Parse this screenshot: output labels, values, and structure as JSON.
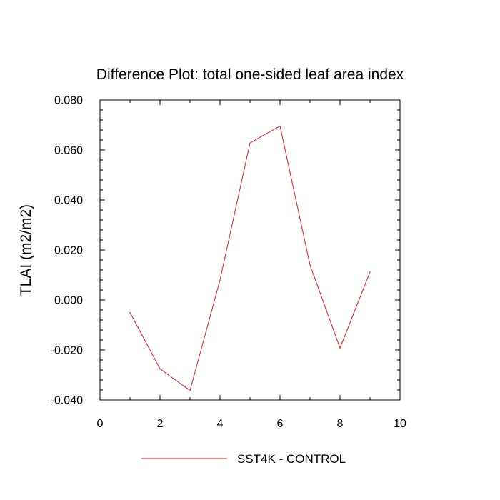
{
  "chart_data": {
    "type": "line",
    "title": "Difference Plot: total one-sided leaf area index",
    "xlabel": "",
    "ylabel": "TLAI  (m2/m2)",
    "xlim": [
      0,
      10
    ],
    "ylim": [
      -0.04,
      0.08
    ],
    "x_ticks": [
      "0",
      "2",
      "4",
      "6",
      "8",
      "10"
    ],
    "x_tick_values": [
      0,
      2,
      4,
      6,
      8,
      10
    ],
    "y_ticks": [
      "-0.040",
      "-0.020",
      "0.000",
      "0.020",
      "0.040",
      "0.060",
      "0.080"
    ],
    "y_tick_values": [
      -0.04,
      -0.02,
      0.0,
      0.02,
      0.04,
      0.06,
      0.08
    ],
    "grid": false,
    "legend_position": "bottom-center",
    "series": [
      {
        "name": "SST4K - CONTROL",
        "color": "#e8191c",
        "x": [
          1,
          2,
          3,
          4,
          5,
          6,
          7,
          8,
          9
        ],
        "y": [
          -0.005,
          -0.0275,
          -0.0362,
          0.008,
          0.0628,
          0.0696,
          0.014,
          -0.0192,
          0.0112
        ]
      }
    ]
  }
}
